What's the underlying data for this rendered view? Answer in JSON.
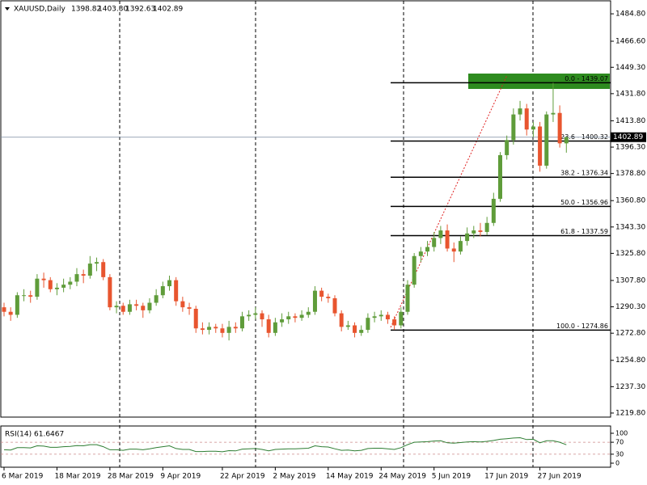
{
  "chart_data": {
    "type": "candlestick",
    "symbol": "XAUUSD,Daily",
    "header_labels": [
      "1398.82",
      "1403.30",
      "1392.63",
      "1402.89"
    ],
    "up_color": "#5f9c3a",
    "down_color": "#e8552f",
    "categories": [
      "6 Mar 2019",
      null,
      null,
      null,
      null,
      null,
      null,
      null,
      "18 Mar 2019",
      null,
      null,
      null,
      null,
      null,
      null,
      null,
      "28 Mar 2019",
      null,
      null,
      null,
      null,
      null,
      null,
      null,
      "9 Apr 2019",
      null,
      null,
      null,
      null,
      null,
      null,
      null,
      null,
      "22 Apr 2019",
      null,
      null,
      null,
      null,
      null,
      null,
      null,
      "2 May 2019",
      null,
      null,
      null,
      null,
      null,
      null,
      null,
      "14 May 2019",
      null,
      null,
      null,
      null,
      null,
      null,
      null,
      "24 May 2019",
      null,
      null,
      null,
      null,
      null,
      null,
      null,
      "5 Jun 2019",
      null,
      null,
      null,
      null,
      null,
      null,
      null,
      "17 Jun 2019",
      null,
      null,
      null,
      null,
      null,
      null,
      null,
      "27 Jun 2019",
      null,
      null,
      null,
      null
    ],
    "candles": [
      [
        1290,
        1293,
        1284,
        1287
      ],
      [
        1287,
        1290,
        1281,
        1285
      ],
      [
        1285,
        1300,
        1283,
        1298
      ],
      [
        1298,
        1302,
        1294,
        1298
      ],
      [
        1298,
        1301,
        1293,
        1297
      ],
      [
        1297,
        1312,
        1295,
        1309
      ],
      [
        1309,
        1313,
        1303,
        1308
      ],
      [
        1308,
        1310,
        1300,
        1302
      ],
      [
        1302,
        1306,
        1298,
        1303
      ],
      [
        1303,
        1309,
        1300,
        1305
      ],
      [
        1305,
        1310,
        1302,
        1307
      ],
      [
        1307,
        1316,
        1304,
        1312
      ],
      [
        1312,
        1315,
        1306,
        1311
      ],
      [
        1311,
        1324,
        1309,
        1319
      ],
      [
        1319,
        1323,
        1314,
        1320
      ],
      [
        1320,
        1322,
        1308,
        1310
      ],
      [
        1310,
        1312,
        1288,
        1290
      ],
      [
        1290,
        1294,
        1286,
        1291
      ],
      [
        1291,
        1293,
        1285,
        1287
      ],
      [
        1287,
        1295,
        1285,
        1292
      ],
      [
        1292,
        1295,
        1288,
        1291
      ],
      [
        1291,
        1293,
        1283,
        1288
      ],
      [
        1288,
        1296,
        1286,
        1293
      ],
      [
        1293,
        1302,
        1291,
        1298
      ],
      [
        1298,
        1307,
        1296,
        1304
      ],
      [
        1304,
        1311,
        1301,
        1308
      ],
      [
        1308,
        1310,
        1291,
        1294
      ],
      [
        1294,
        1297,
        1287,
        1290
      ],
      [
        1290,
        1293,
        1285,
        1289
      ],
      [
        1289,
        1291,
        1273,
        1276
      ],
      [
        1276,
        1280,
        1272,
        1275
      ],
      [
        1275,
        1280,
        1272,
        1277
      ],
      [
        1277,
        1279,
        1273,
        1276
      ],
      [
        1276,
        1279,
        1270,
        1273
      ],
      [
        1273,
        1281,
        1268,
        1277
      ],
      [
        1277,
        1280,
        1273,
        1276
      ],
      [
        1276,
        1287,
        1274,
        1284
      ],
      [
        1284,
        1288,
        1281,
        1285
      ],
      [
        1285,
        1290,
        1282,
        1286
      ],
      [
        1286,
        1288,
        1277,
        1282
      ],
      [
        1282,
        1285,
        1270,
        1273
      ],
      [
        1273,
        1283,
        1271,
        1280
      ],
      [
        1280,
        1286,
        1277,
        1282
      ],
      [
        1282,
        1287,
        1279,
        1284
      ],
      [
        1284,
        1286,
        1280,
        1283
      ],
      [
        1283,
        1288,
        1281,
        1285
      ],
      [
        1285,
        1290,
        1283,
        1287
      ],
      [
        1287,
        1304,
        1285,
        1301
      ],
      [
        1301,
        1303,
        1294,
        1297
      ],
      [
        1297,
        1299,
        1293,
        1296
      ],
      [
        1296,
        1298,
        1284,
        1286
      ],
      [
        1286,
        1288,
        1274,
        1277
      ],
      [
        1277,
        1281,
        1275,
        1278
      ],
      [
        1278,
        1280,
        1270,
        1273
      ],
      [
        1273,
        1278,
        1271,
        1275
      ],
      [
        1275,
        1286,
        1273,
        1283
      ],
      [
        1283,
        1287,
        1280,
        1284
      ],
      [
        1284,
        1288,
        1281,
        1285
      ],
      [
        1285,
        1287,
        1279,
        1282
      ],
      [
        1282,
        1284,
        1275,
        1278
      ],
      [
        1278,
        1290,
        1276,
        1287
      ],
      [
        1287,
        1308,
        1285,
        1305
      ],
      [
        1305,
        1326,
        1303,
        1324
      ],
      [
        1324,
        1330,
        1320,
        1327
      ],
      [
        1327,
        1334,
        1324,
        1330
      ],
      [
        1330,
        1340,
        1327,
        1336
      ],
      [
        1336,
        1344,
        1332,
        1341
      ],
      [
        1341,
        1345,
        1327,
        1329
      ],
      [
        1329,
        1333,
        1320,
        1327
      ],
      [
        1327,
        1337,
        1325,
        1334
      ],
      [
        1334,
        1343,
        1331,
        1339
      ],
      [
        1339,
        1344,
        1336,
        1341
      ],
      [
        1341,
        1346,
        1337,
        1340
      ],
      [
        1340,
        1350,
        1338,
        1346
      ],
      [
        1346,
        1366,
        1344,
        1362
      ],
      [
        1362,
        1393,
        1360,
        1391
      ],
      [
        1391,
        1404,
        1388,
        1401
      ],
      [
        1401,
        1422,
        1398,
        1418
      ],
      [
        1418,
        1427,
        1414,
        1422
      ],
      [
        1422,
        1425,
        1404,
        1408
      ],
      [
        1408,
        1413,
        1403,
        1410
      ],
      [
        1410,
        1413,
        1380,
        1384
      ],
      [
        1384,
        1420,
        1382,
        1418
      ],
      [
        1418,
        1439,
        1413,
        1419
      ],
      [
        1419,
        1424,
        1396,
        1398.82
      ],
      [
        1398.82,
        1403.3,
        1392.63,
        1402.89
      ]
    ],
    "ylim": [
      1217.1,
      1492.9
    ],
    "yticks": [
      {
        "value": 1484.8,
        "label": "1484.80"
      },
      {
        "value": 1466.6,
        "label": "1466.60"
      },
      {
        "value": 1449.3,
        "label": "1449.30"
      },
      {
        "value": 1431.8,
        "label": "1431.80"
      },
      {
        "value": 1413.8,
        "label": "1413.80"
      },
      {
        "value": 1396.3,
        "label": "1396.30"
      },
      {
        "value": 1378.8,
        "label": "1378.80"
      },
      {
        "value": 1360.8,
        "label": "1360.80"
      },
      {
        "value": 1343.3,
        "label": "1343.30"
      },
      {
        "value": 1325.8,
        "label": "1325.80"
      },
      {
        "value": 1307.8,
        "label": "1307.80"
      },
      {
        "value": 1290.3,
        "label": "1290.30"
      },
      {
        "value": 1272.8,
        "label": "1272.80"
      },
      {
        "value": 1254.8,
        "label": "1254.80"
      },
      {
        "value": 1237.3,
        "label": "1237.30"
      },
      {
        "value": 1219.8,
        "label": "1219.80"
      }
    ],
    "fib_levels": [
      {
        "label": "0.0 - 1439.07",
        "value": 1439.07
      },
      {
        "label": "23.6 - 1400.32",
        "value": 1400.32
      },
      {
        "label": "38.2 - 1376.34",
        "value": 1376.34
      },
      {
        "label": "50.0 - 1356.96",
        "value": 1356.96
      },
      {
        "label": "61.8 - 1337.59",
        "value": 1337.59
      },
      {
        "label": "100.0 - 1274.86",
        "value": 1274.86
      }
    ],
    "rsi": {
      "name": "RSI(14)",
      "color": "#2e7d32",
      "ylim": [
        0,
        100
      ],
      "yticks": [
        100,
        70,
        30,
        0
      ],
      "levels": [
        70,
        30
      ],
      "values": [
        45,
        44,
        52,
        52,
        51,
        58,
        57,
        53,
        53,
        55,
        56,
        59,
        58,
        62,
        62,
        55,
        45,
        45,
        43,
        47,
        47,
        45,
        48,
        52,
        55,
        58,
        49,
        46,
        46,
        39,
        39,
        40,
        40,
        38,
        42,
        41,
        47,
        48,
        49,
        46,
        41,
        46,
        47,
        48,
        48,
        49,
        50,
        58,
        55,
        54,
        48,
        43,
        44,
        41,
        43,
        49,
        50,
        50,
        48,
        46,
        52,
        62,
        70,
        71,
        72,
        74,
        75,
        68,
        67,
        69,
        71,
        72,
        71,
        73,
        76,
        80,
        82,
        84,
        85,
        79,
        80,
        68,
        75,
        75,
        70,
        61.6467
      ]
    }
  }
}
